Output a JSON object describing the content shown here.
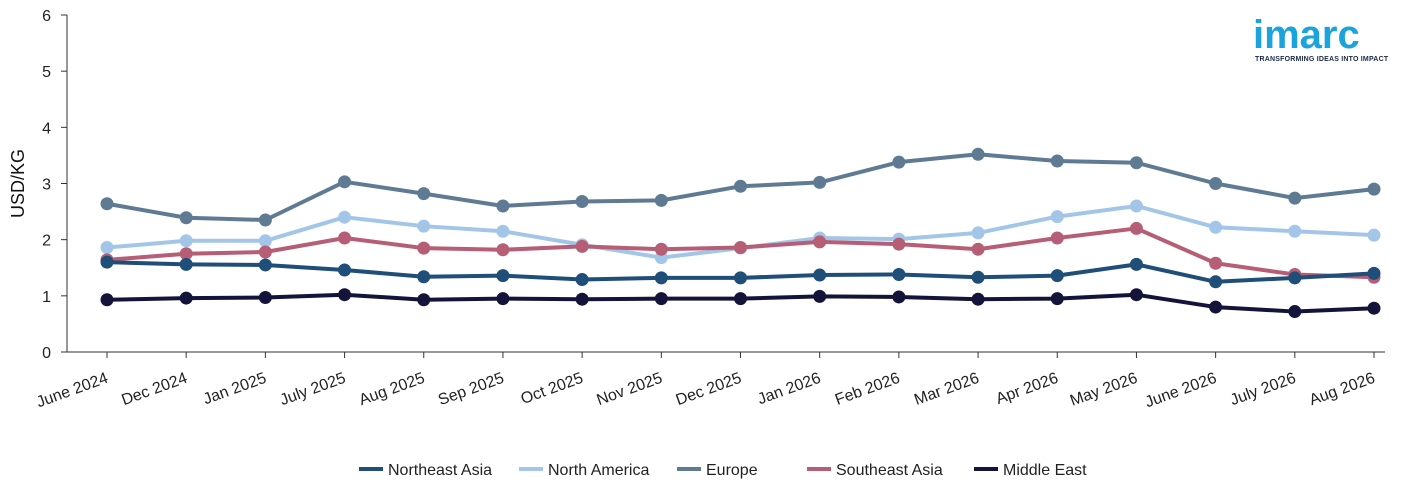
{
  "logo": {
    "name": "imarc",
    "tagline": "TRANSFORMING IDEAS INTO IMPACT",
    "color": "#1aa3dd"
  },
  "chart_data": {
    "type": "line",
    "ylabel": "USD/KG",
    "xlabel": "",
    "ylim": [
      0,
      6
    ],
    "yticks": [
      0,
      1,
      2,
      3,
      4,
      5,
      6
    ],
    "grid": false,
    "legend_position": "bottom-center",
    "categories": [
      "June 2024",
      "Dec 2024",
      "Jan 2025",
      "July 2025",
      "Aug 2025",
      "Sep 2025",
      "Oct 2025",
      "Nov 2025",
      "Dec 2025",
      "Jan 2026",
      "Feb 2026",
      "Mar 2026",
      "Apr 2026",
      "May 2026",
      "June 2026",
      "July 2026",
      "Aug 2026"
    ],
    "series": [
      {
        "name": "Europe",
        "color": "#5f7a93",
        "values": [
          2.64,
          2.39,
          2.35,
          3.03,
          2.82,
          2.6,
          2.68,
          2.7,
          2.95,
          3.02,
          3.38,
          3.52,
          3.4,
          3.37,
          3.0,
          2.74,
          2.9
        ]
      },
      {
        "name": "North America",
        "color": "#a3c6e8",
        "values": [
          1.86,
          1.98,
          1.98,
          2.4,
          2.24,
          2.15,
          1.91,
          1.68,
          1.85,
          2.03,
          2.01,
          2.12,
          2.41,
          2.6,
          2.22,
          2.15,
          2.08
        ]
      },
      {
        "name": "Southeast Asia",
        "color": "#b65e75",
        "values": [
          1.64,
          1.75,
          1.78,
          2.03,
          1.85,
          1.82,
          1.88,
          1.83,
          1.86,
          1.96,
          1.92,
          1.83,
          2.03,
          2.2,
          1.58,
          1.38,
          1.33
        ]
      },
      {
        "name": "Northeast Asia",
        "color": "#1f4e79",
        "values": [
          1.6,
          1.56,
          1.55,
          1.46,
          1.34,
          1.36,
          1.29,
          1.32,
          1.32,
          1.37,
          1.38,
          1.33,
          1.36,
          1.56,
          1.25,
          1.32,
          1.4
        ]
      },
      {
        "name": "Middle East",
        "color": "#14143a",
        "values": [
          0.93,
          0.96,
          0.97,
          1.02,
          0.93,
          0.95,
          0.94,
          0.95,
          0.95,
          0.99,
          0.98,
          0.94,
          0.95,
          1.02,
          0.8,
          0.72,
          0.78
        ]
      }
    ],
    "legend_order": [
      "Northeast Asia",
      "North America",
      "Europe",
      "Southeast Asia",
      "Middle East"
    ]
  }
}
